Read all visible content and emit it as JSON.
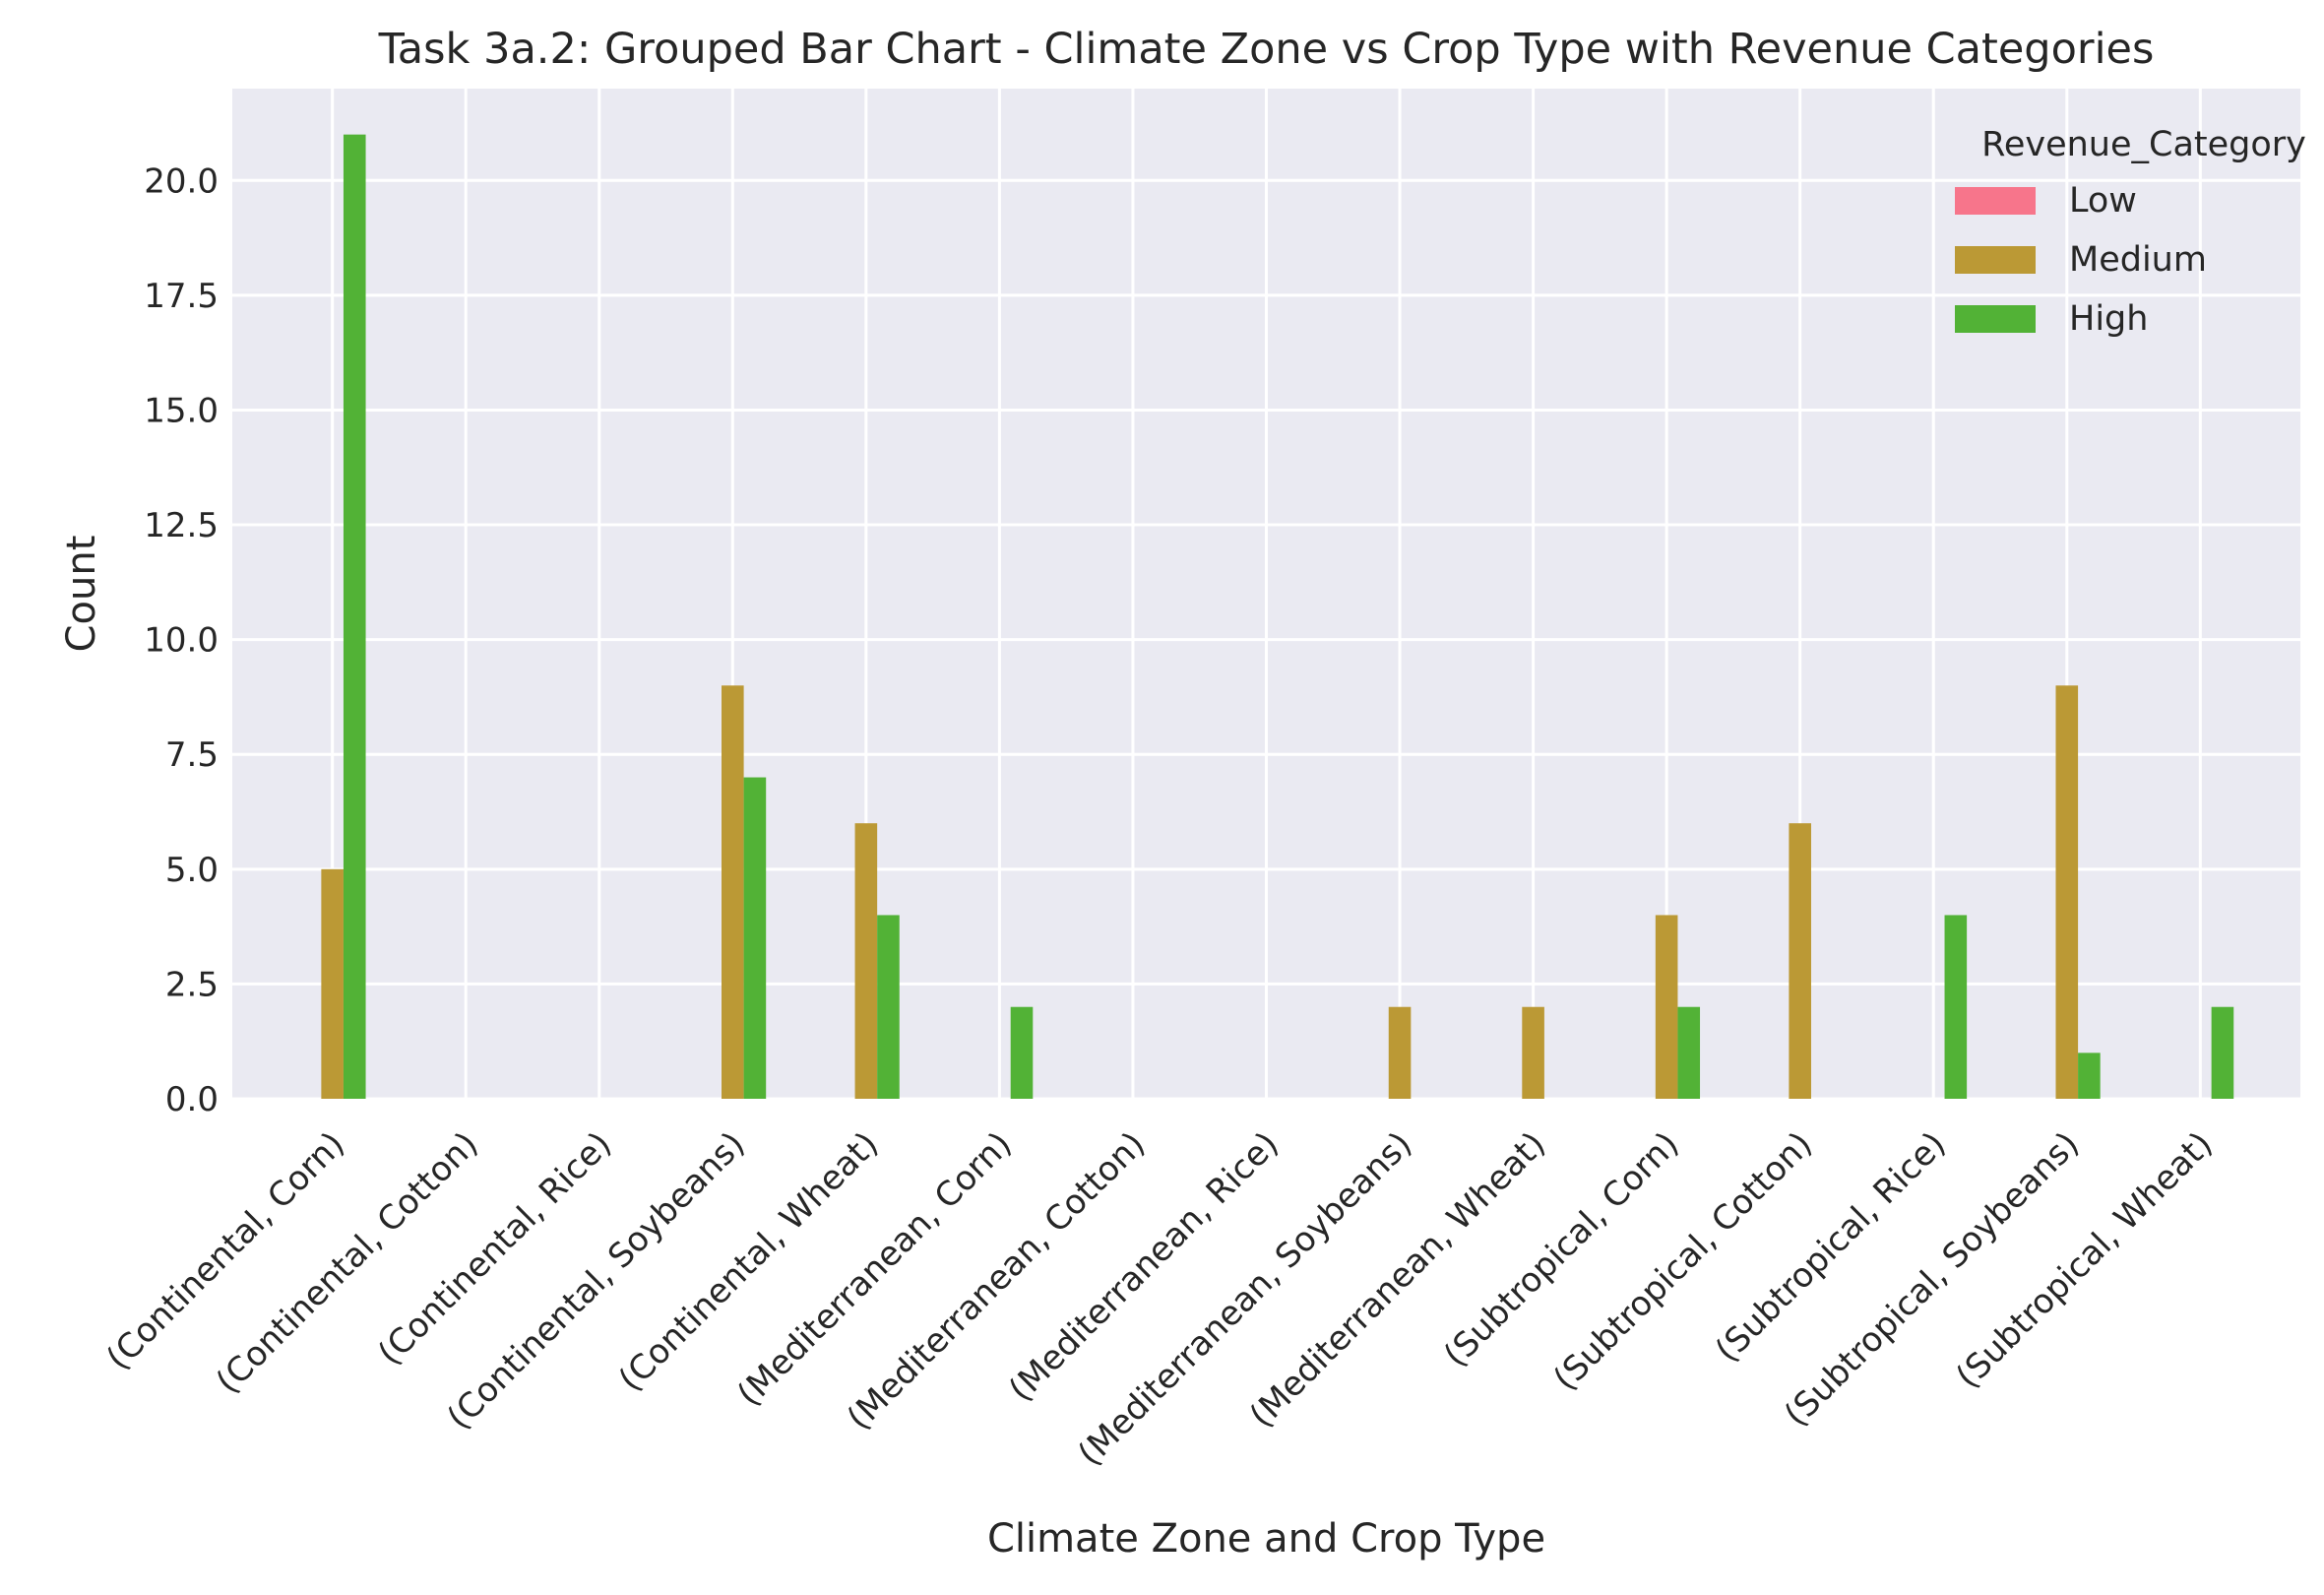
{
  "chart_data": {
    "type": "bar",
    "title": "Task 3a.2: Grouped Bar Chart - Climate Zone vs Crop Type with Revenue Categories",
    "xlabel": "Climate Zone and Crop Type",
    "ylabel": "Count",
    "ylim": [
      0,
      22
    ],
    "yticks": [
      "0.0",
      "2.5",
      "5.0",
      "7.5",
      "10.0",
      "12.5",
      "15.0",
      "17.5",
      "20.0"
    ],
    "grid": true,
    "legend": {
      "title": "Revenue_Category",
      "placement": "top-right"
    },
    "categories": [
      "(Continental, Corn)",
      "(Continental, Cotton)",
      "(Continental, Rice)",
      "(Continental, Soybeans)",
      "(Continental, Wheat)",
      "(Mediterranean, Corn)",
      "(Mediterranean, Cotton)",
      "(Mediterranean, Rice)",
      "(Mediterranean, Soybeans)",
      "(Mediterranean, Wheat)",
      "(Subtropical, Corn)",
      "(Subtropical, Cotton)",
      "(Subtropical, Rice)",
      "(Subtropical, Soybeans)",
      "(Subtropical, Wheat)"
    ],
    "series": [
      {
        "name": "Low",
        "color": "#f7758b",
        "values": [
          0,
          0,
          0,
          0,
          0,
          0,
          0,
          0,
          0,
          0,
          0,
          0,
          0,
          0,
          0
        ]
      },
      {
        "name": "Medium",
        "color": "#bb9935",
        "values": [
          5,
          0,
          0,
          9,
          6,
          0,
          0,
          0,
          2,
          2,
          4,
          6,
          0,
          9,
          0
        ]
      },
      {
        "name": "High",
        "color": "#52b236",
        "values": [
          21,
          0,
          0,
          7,
          4,
          2,
          0,
          0,
          0,
          0,
          2,
          0,
          4,
          1,
          2
        ]
      }
    ]
  }
}
